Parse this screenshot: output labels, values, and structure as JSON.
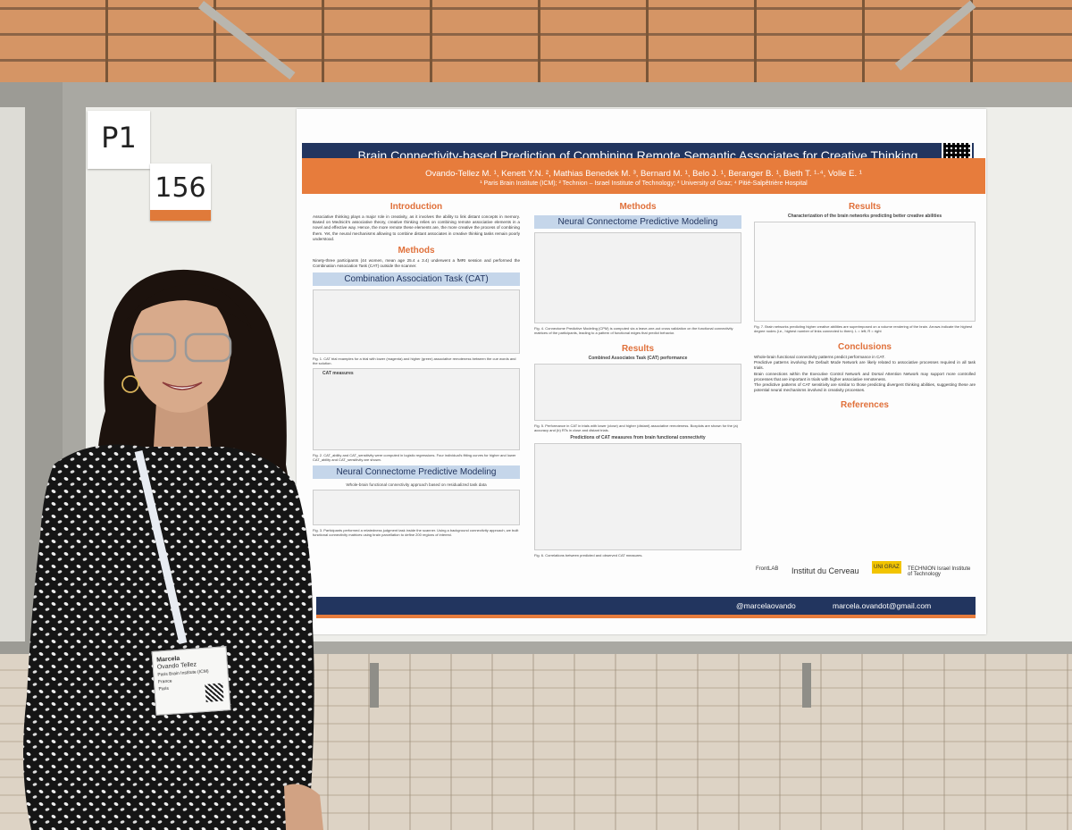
{
  "signs": {
    "p1": "P1",
    "number": "156"
  },
  "poster": {
    "title": "Brain Connectivity-based Prediction of Combining Remote Semantic Associates for Creative Thinking",
    "authors": "Ovando-Tellez M. ¹, Kenett Y.N. ², Mathias Benedek M. ³, Bernard M. ¹, Belo J. ¹, Beranger B. ¹, Bieth T. ¹·⁴, Volle E. ¹",
    "affiliations": "¹ Paris Brain Institute (ICM); ² Technion – Israel Institute of Technology; ³ University of Graz; ⁴ Pitié-Salpêtrière Hospital",
    "col1": {
      "intro_heading": "Introduction",
      "intro_text": "Associative thinking plays a major role in creativity, as it involves the ability to link distant concepts in memory. Based on Mednick's associative theory, creative thinking relies on combining remote associative elements in a novel and effective way. Hence, the more remote these elements are, the more creative the process of combining them. Yet, the neural mechanisms allowing to combine distant associates in creative thinking tasks remain poorly understood.",
      "methods_heading": "Methods",
      "methods_text": "Ninety-three participants (44 women, mean age 25.4 ± 3.4) underwent a fMRI session and performed the Combination Association Task (CAT) outside the scanner.",
      "cat_band": "Combination Association Task (CAT)",
      "fig1_caption": "Fig. 1. CAT trial examples for a trial with lower (magenta) and higher (green) associative remoteness between the cue words and the solution.",
      "cat_measures": "CAT measures",
      "fig2_caption": "Fig. 2. CAT_ability and CAT_sensitivity were computed in logistic regressions. Four individual's fitting curves for higher and lower CAT_ability and CAT_sensitivity are shown.",
      "ncpm_band": "Neural Connectome Predictive Modeling",
      "ncpm_sub": "Whole-brain functional connectivity approach based on residualized task data",
      "fig3_caption": "Fig. 3. Participants performed a relatedness judgment task inside the scanner. Using a background connectivity approach, we built functional connectivity matrices using brain parcellation to define 200 regions of interest."
    },
    "col2": {
      "methods_heading": "Methods",
      "ncpm_band": "Neural Connectome Predictive Modeling",
      "fig4_caption": "Fig. 4. Connectome Predictive Modeling (CPM) is computed via a leave-one-out cross validation on the functional connectivity matrices of the participants, leading to a pattern of functional edges that predict behavior.",
      "results_heading": "Results",
      "results_sub": "Combined Associates Task (CAT) performance",
      "fig5_caption": "Fig. 5. Performance in CAT in trials with lower (close) and higher (distant) associative remoteness. Boxplots are shown for the (a) accuracy and (b) RTs in close and distant trials.",
      "pred_title": "Predictions of CAT measures from brain functional connectivity",
      "fig6_caption": "Fig. 6. Correlations between predicted and observed CAT measures."
    },
    "col3": {
      "results_heading": "Results",
      "results_sub": "Characterization of the brain networks predicting better creative abilities",
      "fig7_caption": "Fig. 7. Brain networks predicting higher creative abilities are superimposed on a volume rendering of the brain. Arrows indicate the highest degree nodes (i.e., highest number of links connected to them). L = left; R = right",
      "conclusions_heading": "Conclusions",
      "conclusions": [
        "Whole-brain functional connectivity patterns predict performance in CAT.",
        "Predictive patterns involving the Default Mode Network are likely related to associative processes required in all task trials.",
        "Brain connections within the Executive Control Network and Dorsal Attention Network may support more controlled processes that are important in trials with higher associative remoteness.",
        "The predictive patterns of CAT sensitivity are similar to those predicting divergent thinking abilities, suggesting these are potential neural mechanisms involved in creativity processes."
      ],
      "references_heading": "References",
      "logos": [
        "FrontLAB",
        "Institut du Cerveau",
        "UNI GRAZ",
        "TECHNION Israel Institute of Technology"
      ]
    },
    "footer": {
      "twitter": "@marcelaovando",
      "email": "marcela.ovandot@gmail.com"
    }
  },
  "badge": {
    "line1": "Marcela",
    "line2": "Ovando Tellez",
    "line3": "Paris Brain Institute (ICM)",
    "line4": "France",
    "line5": "Paris"
  }
}
